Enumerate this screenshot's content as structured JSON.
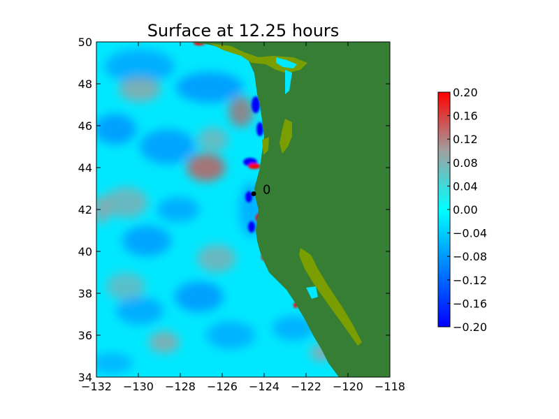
{
  "chart_data": {
    "type": "heatmap",
    "title": "Surface at 12.25 hours",
    "xlabel": "",
    "ylabel": "",
    "xlim": [
      -132,
      -118
    ],
    "ylim": [
      34,
      50
    ],
    "xticks": [
      -132,
      -130,
      -128,
      -126,
      -124,
      -122,
      -120,
      -118
    ],
    "yticks": [
      34,
      36,
      38,
      40,
      42,
      44,
      46,
      48,
      50
    ],
    "xtick_labels": [
      "−132",
      "−130",
      "−128",
      "−126",
      "−124",
      "−122",
      "−120",
      "−118"
    ],
    "ytick_labels": [
      "34",
      "36",
      "38",
      "40",
      "42",
      "44",
      "46",
      "48",
      "50"
    ],
    "colorbar": {
      "min": -0.2,
      "max": 0.2,
      "ticks": [
        0.2,
        0.16,
        0.12,
        0.08,
        0.04,
        0.0,
        -0.04,
        -0.08,
        -0.12,
        -0.16,
        -0.2
      ],
      "tick_labels": [
        "0.20",
        "0.16",
        "0.12",
        "0.08",
        "0.04",
        "0.00",
        "−0.04",
        "−0.08",
        "−0.12",
        "−0.16",
        "−0.20"
      ],
      "colors": [
        "#0000ff",
        "#0080ff",
        "#00ffff",
        "#a0a0a0",
        "#ff0000"
      ]
    },
    "land_color": "#357e33",
    "lowland_color": "#7a9e00",
    "gauge": {
      "lon": -124.5,
      "lat": 42.75,
      "label": "0"
    }
  }
}
